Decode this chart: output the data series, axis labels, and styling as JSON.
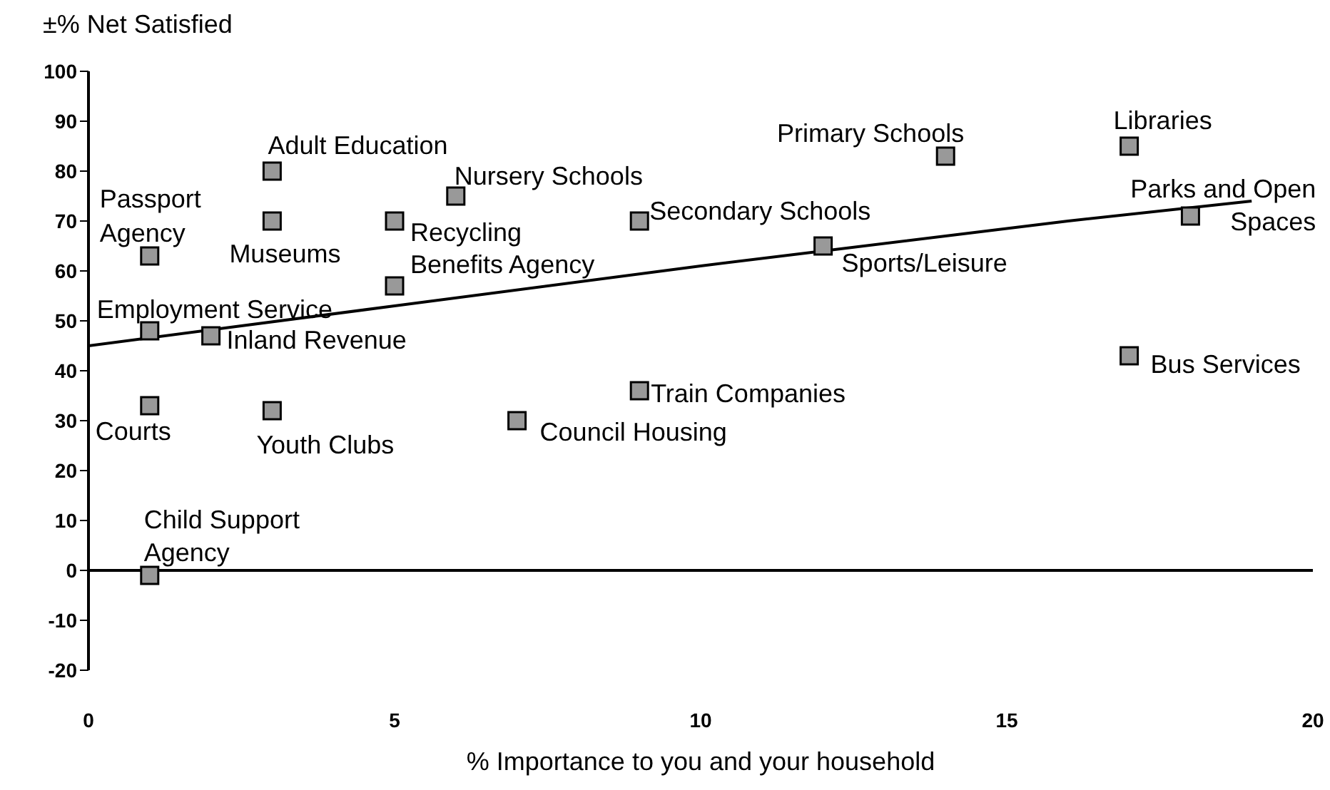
{
  "chart_data": {
    "type": "scatter",
    "ylabel": "±% Net Satisfied",
    "xlabel": "% Importance to you and your household",
    "xlim": [
      0,
      20
    ],
    "xticks": [
      0,
      5,
      10,
      15,
      20
    ],
    "ylim": [
      -20,
      100
    ],
    "yticks": [
      -20,
      -10,
      0,
      10,
      20,
      30,
      40,
      50,
      60,
      70,
      80,
      90,
      100
    ],
    "grid": false,
    "legend": false,
    "marker": "square",
    "ref_lines": [
      {
        "axis": "y",
        "value": 0,
        "color": "#000000"
      }
    ],
    "series": [
      {
        "color": "#999999",
        "x": [
          1,
          3,
          3,
          5,
          6,
          5,
          1,
          2,
          9,
          14,
          17,
          18,
          12,
          17,
          9,
          7,
          1,
          3,
          1
        ],
        "values": [
          63,
          80,
          70,
          70,
          75,
          57,
          48,
          47,
          70,
          83,
          85,
          71,
          65,
          43,
          36,
          30,
          33,
          32,
          -1
        ]
      },
      {
        "type": "line",
        "color": "#000000",
        "marker": "none",
        "line_style": "solid",
        "x": [
          0,
          5,
          10,
          12,
          14,
          16,
          19
        ],
        "values": [
          45,
          53,
          61,
          64,
          67,
          70,
          74
        ]
      }
    ],
    "annotations": [
      {
        "text": "Passport Agency",
        "x": 1,
        "y": 63
      },
      {
        "text": "Adult Education",
        "x": 3,
        "y": 80
      },
      {
        "text": "Museums",
        "x": 3,
        "y": 70
      },
      {
        "text": "Recycling",
        "x": 5,
        "y": 70
      },
      {
        "text": "Nursery Schools",
        "x": 6,
        "y": 75
      },
      {
        "text": "Benefits Agency",
        "x": 5,
        "y": 57
      },
      {
        "text": "Employment Service",
        "x": 1,
        "y": 48
      },
      {
        "text": "Inland Revenue",
        "x": 2,
        "y": 47
      },
      {
        "text": "Secondary Schools",
        "x": 9,
        "y": 70
      },
      {
        "text": "Primary Schools",
        "x": 14,
        "y": 83
      },
      {
        "text": "Libraries",
        "x": 17,
        "y": 85
      },
      {
        "text": "Parks and Open Spaces",
        "x": 18,
        "y": 71
      },
      {
        "text": "Sports/Leisure",
        "x": 12,
        "y": 65
      },
      {
        "text": "Bus Services",
        "x": 17,
        "y": 43
      },
      {
        "text": "Train Companies",
        "x": 9,
        "y": 36
      },
      {
        "text": "Council Housing",
        "x": 7,
        "y": 30
      },
      {
        "text": "Courts",
        "x": 1,
        "y": 33
      },
      {
        "text": "Youth Clubs",
        "x": 3,
        "y": 32
      },
      {
        "text": "Child Support Agency",
        "x": 1,
        "y": -1
      }
    ]
  }
}
